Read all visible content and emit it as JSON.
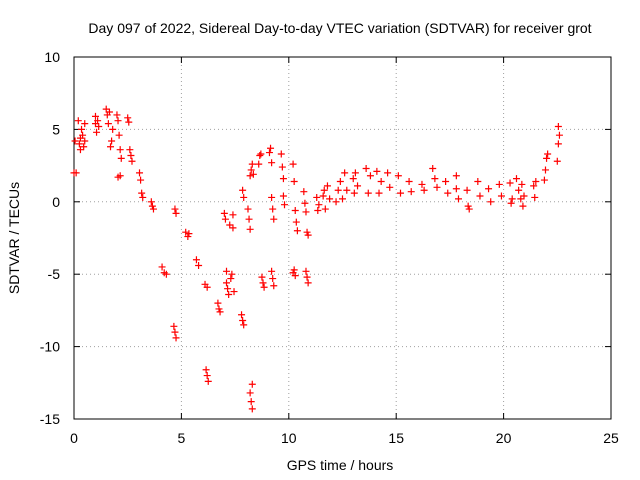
{
  "chart_data": {
    "type": "scatter",
    "title": "Day 097 of 2022, Sidereal Day-to-day VTEC variation (SDTVAR) for receiver grot",
    "xlabel": "GPS time / hours",
    "ylabel": "SDTVAR / TECUs",
    "xlim": [
      0,
      25
    ],
    "ylim": [
      -15,
      10
    ],
    "xticks": [
      0,
      5,
      10,
      15,
      20,
      25
    ],
    "xtick_labels": [
      "0",
      "5",
      "10",
      "15",
      "20",
      "25"
    ],
    "yticks": [
      -15,
      -10,
      -5,
      0,
      5,
      10
    ],
    "ytick_labels": [
      "-15",
      "-10",
      "-5",
      "0",
      "5",
      "10"
    ],
    "grid": true,
    "marker": "+",
    "marker_color": "#ff0000",
    "series": [
      {
        "name": "SDTVAR",
        "points": [
          [
            0.0,
            2.0
          ],
          [
            0.05,
            4.2
          ],
          [
            0.1,
            2.0
          ],
          [
            0.2,
            5.6
          ],
          [
            0.25,
            4.0
          ],
          [
            0.3,
            3.6
          ],
          [
            0.3,
            4.4
          ],
          [
            0.35,
            5.0
          ],
          [
            0.4,
            4.6
          ],
          [
            0.45,
            3.8
          ],
          [
            0.5,
            4.2
          ],
          [
            0.5,
            5.4
          ],
          [
            1.0,
            5.4
          ],
          [
            1.0,
            5.9
          ],
          [
            1.05,
            4.8
          ],
          [
            1.1,
            5.6
          ],
          [
            1.15,
            5.2
          ],
          [
            1.5,
            6.4
          ],
          [
            1.55,
            6.0
          ],
          [
            1.6,
            5.4
          ],
          [
            1.65,
            6.2
          ],
          [
            1.7,
            3.8
          ],
          [
            1.75,
            4.2
          ],
          [
            1.8,
            5.0
          ],
          [
            2.0,
            6.0
          ],
          [
            2.05,
            5.6
          ],
          [
            2.1,
            4.6
          ],
          [
            2.15,
            3.6
          ],
          [
            2.2,
            3.0
          ],
          [
            2.15,
            1.8
          ],
          [
            2.05,
            1.7
          ],
          [
            2.5,
            5.8
          ],
          [
            2.55,
            5.5
          ],
          [
            2.6,
            3.6
          ],
          [
            2.65,
            3.2
          ],
          [
            2.7,
            2.8
          ],
          [
            3.05,
            2.0
          ],
          [
            3.1,
            1.5
          ],
          [
            3.15,
            0.6
          ],
          [
            3.2,
            0.3
          ],
          [
            3.6,
            0.0
          ],
          [
            3.65,
            -0.3
          ],
          [
            3.7,
            -0.5
          ],
          [
            4.1,
            -4.5
          ],
          [
            4.2,
            -4.9
          ],
          [
            4.3,
            -5.0
          ],
          [
            4.7,
            -0.5
          ],
          [
            4.75,
            -0.8
          ],
          [
            4.65,
            -8.6
          ],
          [
            4.7,
            -9.0
          ],
          [
            4.75,
            -9.4
          ],
          [
            5.2,
            -2.1
          ],
          [
            5.3,
            -2.4
          ],
          [
            5.35,
            -2.2
          ],
          [
            5.7,
            -4.0
          ],
          [
            5.8,
            -4.4
          ],
          [
            6.1,
            -5.7
          ],
          [
            6.2,
            -5.9
          ],
          [
            6.15,
            -11.6
          ],
          [
            6.2,
            -12.0
          ],
          [
            6.25,
            -12.4
          ],
          [
            6.7,
            -7.0
          ],
          [
            6.75,
            -7.4
          ],
          [
            6.8,
            -7.6
          ],
          [
            7.0,
            -0.8
          ],
          [
            7.05,
            -1.2
          ],
          [
            7.1,
            -4.8
          ],
          [
            7.1,
            -5.6
          ],
          [
            7.15,
            -6.0
          ],
          [
            7.2,
            -6.4
          ],
          [
            7.25,
            -1.6
          ],
          [
            7.3,
            -5.3
          ],
          [
            7.35,
            -5.0
          ],
          [
            7.4,
            -1.8
          ],
          [
            7.4,
            -0.9
          ],
          [
            7.45,
            -6.2
          ],
          [
            7.8,
            -7.8
          ],
          [
            7.85,
            -8.2
          ],
          [
            7.9,
            -8.5
          ],
          [
            7.85,
            0.8
          ],
          [
            7.9,
            0.3
          ],
          [
            8.2,
            1.8
          ],
          [
            8.25,
            2.2
          ],
          [
            8.3,
            2.6
          ],
          [
            8.35,
            1.9
          ],
          [
            8.1,
            -0.5
          ],
          [
            8.15,
            -1.2
          ],
          [
            8.2,
            -1.9
          ],
          [
            8.2,
            -13.2
          ],
          [
            8.25,
            -13.8
          ],
          [
            8.3,
            -14.3
          ],
          [
            8.3,
            -12.6
          ],
          [
            8.6,
            2.6
          ],
          [
            8.65,
            3.2
          ],
          [
            8.7,
            3.3
          ],
          [
            8.75,
            -5.2
          ],
          [
            8.8,
            -5.6
          ],
          [
            8.85,
            -5.9
          ],
          [
            9.1,
            3.4
          ],
          [
            9.15,
            3.7
          ],
          [
            9.2,
            2.7
          ],
          [
            9.25,
            -0.5
          ],
          [
            9.2,
            0.3
          ],
          [
            9.3,
            -1.2
          ],
          [
            9.2,
            -4.8
          ],
          [
            9.25,
            -5.3
          ],
          [
            9.3,
            -5.8
          ],
          [
            9.65,
            3.3
          ],
          [
            9.7,
            2.4
          ],
          [
            9.75,
            1.6
          ],
          [
            9.8,
            -0.2
          ],
          [
            9.75,
            0.4
          ],
          [
            10.2,
            2.6
          ],
          [
            10.25,
            1.4
          ],
          [
            10.3,
            -0.6
          ],
          [
            10.35,
            -1.4
          ],
          [
            10.4,
            -2.0
          ],
          [
            10.2,
            -4.9
          ],
          [
            10.3,
            -5.1
          ],
          [
            10.25,
            -4.7
          ],
          [
            10.7,
            0.7
          ],
          [
            10.75,
            -0.1
          ],
          [
            10.8,
            -0.7
          ],
          [
            10.85,
            -2.1
          ],
          [
            10.9,
            -2.3
          ],
          [
            10.8,
            -4.8
          ],
          [
            10.85,
            -5.2
          ],
          [
            10.9,
            -5.6
          ],
          [
            11.3,
            0.3
          ],
          [
            11.35,
            -0.6
          ],
          [
            11.4,
            -0.2
          ],
          [
            11.6,
            0.4
          ],
          [
            11.65,
            0.8
          ],
          [
            11.7,
            -0.5
          ],
          [
            11.8,
            1.1
          ],
          [
            11.9,
            0.2
          ],
          [
            12.2,
            0.0
          ],
          [
            12.3,
            0.8
          ],
          [
            12.4,
            1.4
          ],
          [
            12.5,
            0.2
          ],
          [
            12.6,
            2.0
          ],
          [
            12.7,
            0.8
          ],
          [
            13.0,
            1.6
          ],
          [
            13.05,
            0.6
          ],
          [
            13.1,
            2.0
          ],
          [
            13.2,
            1.1
          ],
          [
            13.6,
            2.3
          ],
          [
            13.7,
            0.6
          ],
          [
            13.8,
            1.8
          ],
          [
            14.1,
            2.1
          ],
          [
            14.2,
            0.6
          ],
          [
            14.3,
            1.4
          ],
          [
            14.6,
            2.0
          ],
          [
            14.7,
            1.0
          ],
          [
            15.1,
            1.8
          ],
          [
            15.2,
            0.6
          ],
          [
            15.6,
            1.4
          ],
          [
            15.7,
            0.7
          ],
          [
            16.2,
            1.2
          ],
          [
            16.3,
            0.8
          ],
          [
            16.7,
            2.3
          ],
          [
            16.8,
            1.6
          ],
          [
            16.9,
            1.0
          ],
          [
            17.3,
            1.4
          ],
          [
            17.4,
            0.6
          ],
          [
            17.8,
            1.8
          ],
          [
            17.9,
            0.2
          ],
          [
            17.8,
            0.9
          ],
          [
            18.3,
            0.8
          ],
          [
            18.35,
            -0.3
          ],
          [
            18.4,
            -0.5
          ],
          [
            18.8,
            1.4
          ],
          [
            18.9,
            0.4
          ],
          [
            19.3,
            0.9
          ],
          [
            19.4,
            0.0
          ],
          [
            19.8,
            1.2
          ],
          [
            19.9,
            0.4
          ],
          [
            20.3,
            1.3
          ],
          [
            20.4,
            0.2
          ],
          [
            20.35,
            -0.1
          ],
          [
            20.6,
            1.6
          ],
          [
            20.7,
            0.8
          ],
          [
            20.8,
            0.2
          ],
          [
            20.9,
            -0.3
          ],
          [
            20.85,
            1.2
          ],
          [
            20.95,
            0.4
          ],
          [
            21.4,
            1.1
          ],
          [
            21.5,
            1.4
          ],
          [
            21.45,
            0.3
          ],
          [
            21.9,
            1.5
          ],
          [
            21.95,
            2.2
          ],
          [
            22.0,
            3.0
          ],
          [
            22.05,
            3.3
          ],
          [
            22.5,
            2.8
          ],
          [
            22.55,
            4.0
          ],
          [
            22.6,
            4.6
          ],
          [
            22.55,
            5.2
          ]
        ]
      }
    ]
  }
}
